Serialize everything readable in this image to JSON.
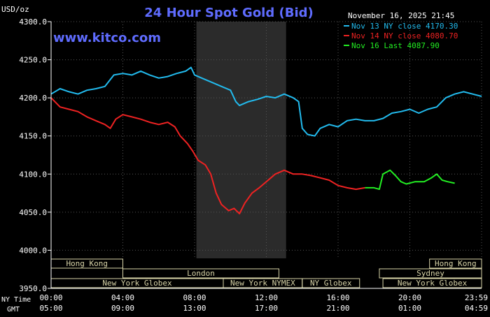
{
  "chart_data": {
    "type": "line",
    "title": "24 Hour Spot Gold (Bid)",
    "ylabel": "USD/oz",
    "ylim": [
      3950,
      4300
    ],
    "yticks": [
      "4300.0",
      "4250.0",
      "4200.0",
      "4150.0",
      "4100.0",
      "4050.0",
      "4000.0",
      "3950.0"
    ],
    "yticks_values": [
      4300,
      4250,
      4200,
      4150,
      4100,
      4050,
      4000,
      3950
    ],
    "xlim": [
      0,
      24
    ],
    "x_row1_label": "NY Time",
    "x_row2_label": "GMT",
    "xticks_values": [
      0,
      4,
      8,
      12,
      16,
      20,
      24
    ],
    "xticks_ny": [
      "00:00",
      "04:00",
      "08:00",
      "12:00",
      "16:00",
      "20:00",
      "23:59"
    ],
    "xticks_gmt": [
      "05:00",
      "09:00",
      "13:00",
      "17:00",
      "21:00",
      "01:00",
      "04:59"
    ],
    "timestamp": "November 16, 2025 21:45",
    "watermark": "www.kitco.com",
    "grid": true,
    "legend_position": "top-right",
    "shaded_session": [
      8.1,
      13.1
    ],
    "colors": {
      "nov13": "#22bbee",
      "nov14": "#ee2222",
      "nov16": "#22ee22",
      "axis": "#ffffff",
      "band": "#d8d4a8",
      "session": "#2b2b2b"
    },
    "series": [
      {
        "name": "Nov 13 NY close 4170.30",
        "color": "#22bbee",
        "points": [
          [
            0,
            4205
          ],
          [
            0.5,
            4212
          ],
          [
            1,
            4208
          ],
          [
            1.5,
            4205
          ],
          [
            2,
            4210
          ],
          [
            2.5,
            4212
          ],
          [
            3,
            4215
          ],
          [
            3.5,
            4230
          ],
          [
            4,
            4232
          ],
          [
            4.5,
            4230
          ],
          [
            5,
            4235
          ],
          [
            5.5,
            4230
          ],
          [
            6,
            4226
          ],
          [
            6.5,
            4228
          ],
          [
            7,
            4232
          ],
          [
            7.5,
            4235
          ],
          [
            7.8,
            4240
          ],
          [
            8,
            4230
          ],
          [
            8.5,
            4225
          ],
          [
            9,
            4220
          ],
          [
            9.5,
            4215
          ],
          [
            10,
            4210
          ],
          [
            10.3,
            4195
          ],
          [
            10.5,
            4190
          ],
          [
            11,
            4195
          ],
          [
            11.5,
            4198
          ],
          [
            12,
            4202
          ],
          [
            12.5,
            4200
          ],
          [
            13,
            4205
          ],
          [
            13.5,
            4200
          ],
          [
            13.8,
            4195
          ],
          [
            14,
            4160
          ],
          [
            14.3,
            4152
          ],
          [
            14.7,
            4150
          ],
          [
            15,
            4160
          ],
          [
            15.5,
            4165
          ],
          [
            16,
            4162
          ],
          [
            16.5,
            4170
          ],
          [
            17,
            4172
          ],
          [
            17.5,
            4170
          ],
          [
            18,
            4170
          ],
          [
            18.5,
            4173
          ],
          [
            19,
            4180
          ],
          [
            19.5,
            4182
          ],
          [
            20,
            4185
          ],
          [
            20.5,
            4180
          ],
          [
            21,
            4185
          ],
          [
            21.5,
            4188
          ],
          [
            22,
            4200
          ],
          [
            22.5,
            4205
          ],
          [
            23,
            4208
          ],
          [
            23.5,
            4205
          ],
          [
            24,
            4202
          ]
        ]
      },
      {
        "name": "Nov 14 NY close 4080.70",
        "color": "#ee2222",
        "points": [
          [
            0,
            4200
          ],
          [
            0.5,
            4188
          ],
          [
            1,
            4185
          ],
          [
            1.5,
            4182
          ],
          [
            2,
            4175
          ],
          [
            2.5,
            4170
          ],
          [
            3,
            4165
          ],
          [
            3.3,
            4160
          ],
          [
            3.6,
            4172
          ],
          [
            4,
            4178
          ],
          [
            4.5,
            4175
          ],
          [
            5,
            4172
          ],
          [
            5.5,
            4168
          ],
          [
            6,
            4165
          ],
          [
            6.5,
            4168
          ],
          [
            6.9,
            4162
          ],
          [
            7.2,
            4150
          ],
          [
            7.6,
            4140
          ],
          [
            7.9,
            4130
          ],
          [
            8.2,
            4118
          ],
          [
            8.6,
            4112
          ],
          [
            8.9,
            4100
          ],
          [
            9.2,
            4075
          ],
          [
            9.5,
            4060
          ],
          [
            9.9,
            4052
          ],
          [
            10.2,
            4055
          ],
          [
            10.5,
            4048
          ],
          [
            10.8,
            4062
          ],
          [
            11.2,
            4075
          ],
          [
            11.6,
            4082
          ],
          [
            12,
            4090
          ],
          [
            12.5,
            4100
          ],
          [
            13,
            4105
          ],
          [
            13.5,
            4100
          ],
          [
            14,
            4100
          ],
          [
            14.5,
            4098
          ],
          [
            15,
            4095
          ],
          [
            15.5,
            4092
          ],
          [
            16,
            4085
          ],
          [
            16.5,
            4082
          ],
          [
            17,
            4080
          ],
          [
            17.5,
            4082
          ]
        ]
      },
      {
        "name": "Nov 16 Last 4087.90",
        "color": "#22ee22",
        "points": [
          [
            17.5,
            4082
          ],
          [
            18,
            4082
          ],
          [
            18.3,
            4080
          ],
          [
            18.5,
            4100
          ],
          [
            18.9,
            4105
          ],
          [
            19.2,
            4098
          ],
          [
            19.5,
            4090
          ],
          [
            19.8,
            4087
          ],
          [
            20.3,
            4090
          ],
          [
            20.8,
            4090
          ],
          [
            21.2,
            4095
          ],
          [
            21.5,
            4100
          ],
          [
            21.8,
            4092
          ],
          [
            22.1,
            4090
          ],
          [
            22.5,
            4088
          ]
        ]
      }
    ],
    "sessions": [
      {
        "name": "Hong Kong",
        "row": 0,
        "start": 0,
        "end": 4.0
      },
      {
        "name": "London",
        "row": 1,
        "start": 4.0,
        "end": 12.7
      },
      {
        "name": "New York Globex",
        "row": 2,
        "start": 0,
        "end": 9.6
      },
      {
        "name": "New York NYMEX",
        "row": 2,
        "start": 9.6,
        "end": 14.0
      },
      {
        "name": "NY Globex",
        "row": 2,
        "start": 14.0,
        "end": 17.2
      },
      {
        "name": "Sydney",
        "row": 1,
        "start": 18.3,
        "end": 24
      },
      {
        "name": "Hong Kong",
        "row": 0,
        "start": 21.1,
        "end": 24
      },
      {
        "name": "New York Globex",
        "row": 2,
        "start": 18.5,
        "end": 24
      }
    ]
  }
}
